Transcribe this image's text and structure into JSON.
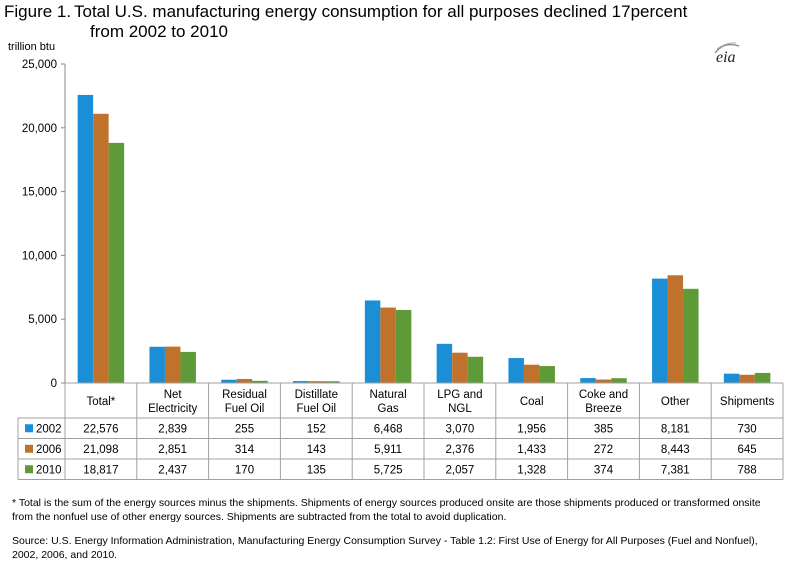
{
  "figure": {
    "label": "Figure 1.",
    "title_line1": "Total U.S. manufacturing energy consumption for all purposes declined 17percent",
    "title_line2": "from 2002 to 2010"
  },
  "logo": {
    "text": "eia",
    "icon": "eia-logo"
  },
  "colors": {
    "2002": "#1b8fd6",
    "2006": "#c0722c",
    "2010": "#5e9a37",
    "grid": "#bfbfbf"
  },
  "chart_data": {
    "type": "bar",
    "ylabel": "trillion btu",
    "ylim": [
      0,
      25000
    ],
    "yticks": [
      "0",
      "5,000",
      "10,000",
      "15,000",
      "20,000",
      "25,000"
    ],
    "grid": false,
    "legend": "table-left",
    "categories": [
      [
        "Total*"
      ],
      [
        "Net",
        "Electricity"
      ],
      [
        "Residual",
        "Fuel Oil"
      ],
      [
        "Distillate",
        "Fuel Oil"
      ],
      [
        "Natural",
        "Gas"
      ],
      [
        "LPG and",
        "NGL"
      ],
      [
        "Coal"
      ],
      [
        "Coke and",
        "Breeze"
      ],
      [
        "Other"
      ],
      [
        "Shipments"
      ]
    ],
    "series": [
      {
        "name": "2002",
        "values": [
          22576,
          2839,
          255,
          152,
          6468,
          3070,
          1956,
          385,
          8181,
          730
        ],
        "labels": [
          "22,576",
          "2,839",
          "255",
          "152",
          "6,468",
          "3,070",
          "1,956",
          "385",
          "8,181",
          "730"
        ]
      },
      {
        "name": "2006",
        "values": [
          21098,
          2851,
          314,
          143,
          5911,
          2376,
          1433,
          272,
          8443,
          645
        ],
        "labels": [
          "21,098",
          "2,851",
          "314",
          "143",
          "5,911",
          "2,376",
          "1,433",
          "272",
          "8,443",
          "645"
        ]
      },
      {
        "name": "2010",
        "values": [
          18817,
          2437,
          170,
          135,
          5725,
          2057,
          1328,
          374,
          7381,
          788
        ],
        "labels": [
          "18,817",
          "2,437",
          "170",
          "135",
          "5,725",
          "2,057",
          "1,328",
          "374",
          "7,381",
          "788"
        ]
      }
    ]
  },
  "footnote": "* Total is the sum of the energy sources minus the shipments. Shipments of energy sources produced onsite are those shipments produced or transformed onsite from the nonfuel use of other energy sources. Shipments are subtracted from the total to avoid duplication.",
  "source": "Source: U.S. Energy Information Administration, Manufacturing Energy Consumption Survey - Table 1.2: First Use of Energy for All Purposes (Fuel and Nonfuel), 2002, 2006, and 2010."
}
